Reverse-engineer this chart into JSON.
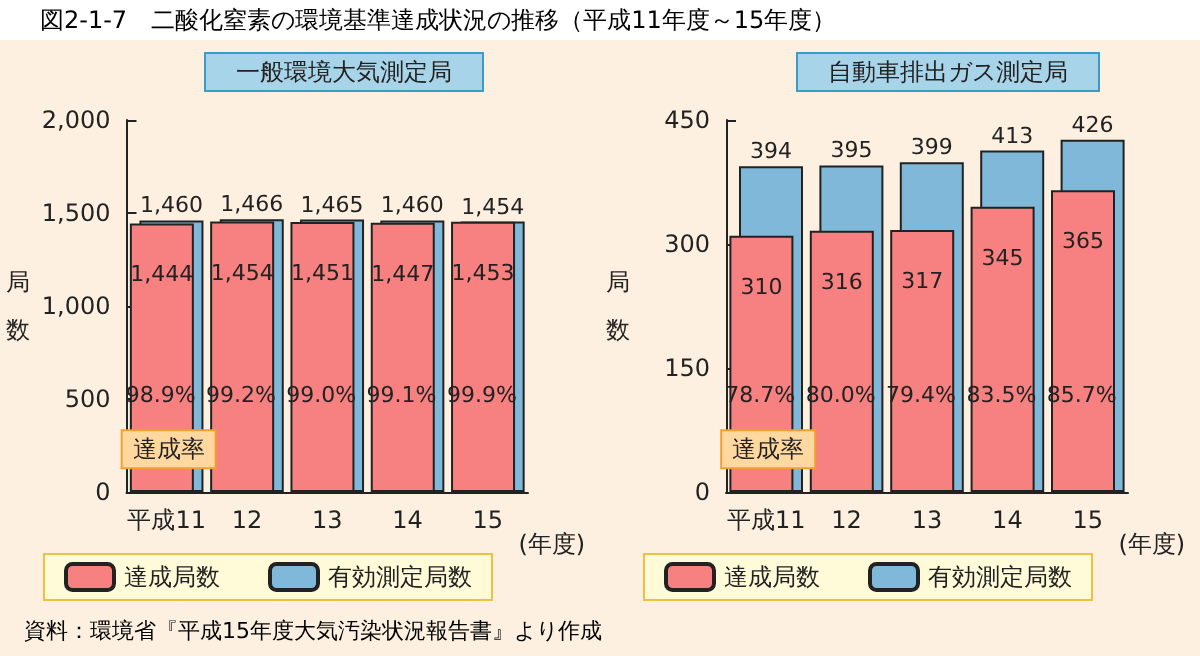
{
  "chart_data": [
    {
      "type": "bar",
      "title": "図2-1-7　二酸化窒素の環境基準達成状況の推移（平成11年度～15年度）",
      "subtitle": "一般環境大気測定局",
      "xlabel": "(年度)",
      "ylabel": "局数",
      "categories": [
        "平成11",
        "12",
        "13",
        "14",
        "15"
      ],
      "series": [
        {
          "name": "達成局数",
          "color": "#f78080",
          "values": [
            1444,
            1454,
            1451,
            1447,
            1453
          ],
          "value_labels": [
            "1,444",
            "1,454",
            "1,451",
            "1,447",
            "1,453"
          ]
        },
        {
          "name": "有効測定局数",
          "color": "#7fb8d8",
          "values": [
            1460,
            1466,
            1465,
            1460,
            1454
          ],
          "value_labels": [
            "1,460",
            "1,466",
            "1,465",
            "1,460",
            "1,454"
          ]
        }
      ],
      "ylim": [
        0,
        2000
      ],
      "yticks": [
        0,
        500,
        {
          "value": 1000,
          "label": "1,000"
        },
        {
          "value": 1500,
          "label": "1,500"
        },
        {
          "value": 2000,
          "label": "2,000"
        }
      ],
      "grid": false,
      "legend": "bottom",
      "annotations": [
        "達成率",
        "98.9%",
        "99.2%",
        "99.0%",
        "99.1%",
        "99.9%",
        "資料：環境省『平成15年度大気汚染状況報告書』より作成"
      ]
    },
    {
      "type": "bar",
      "subtitle": "自動車排出ガス測定局",
      "xlabel": "(年度)",
      "ylabel": "局数",
      "categories": [
        "平成11",
        "12",
        "13",
        "14",
        "15"
      ],
      "series": [
        {
          "name": "達成局数",
          "color": "#f78080",
          "values": [
            310,
            316,
            317,
            345,
            365
          ]
        },
        {
          "name": "有効測定局数",
          "color": "#7fb8d8",
          "values": [
            394,
            395,
            399,
            413,
            426
          ]
        }
      ],
      "ylim": [
        0,
        450
      ],
      "yticks": [
        0,
        150,
        300,
        450
      ],
      "data_labels": true,
      "grid": false,
      "legend": "bottom",
      "annotations": [
        "達成率",
        "78.7%",
        "80.0%",
        "79.4%",
        "83.5%",
        "85.7%"
      ]
    }
  ]
}
